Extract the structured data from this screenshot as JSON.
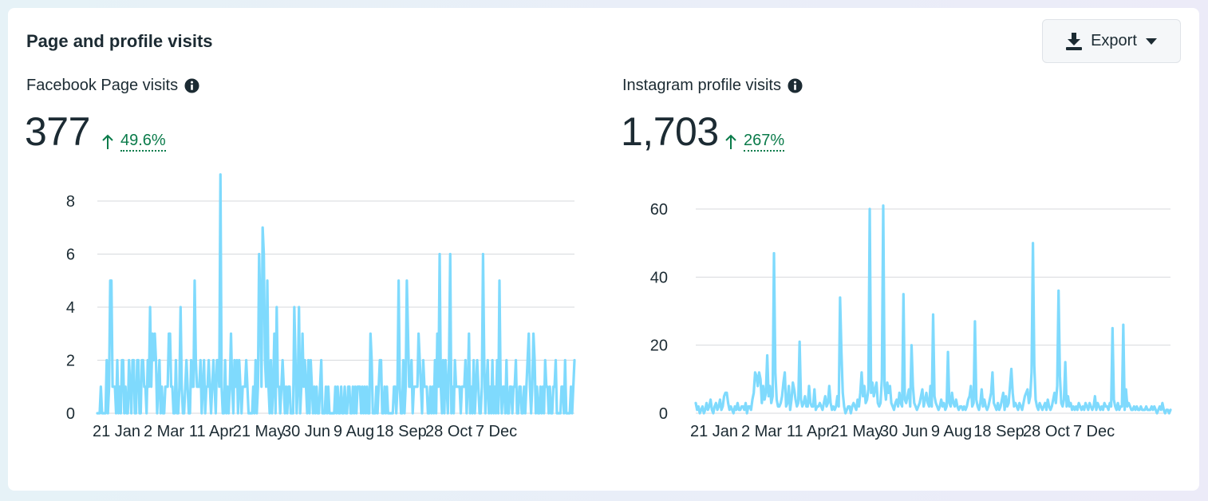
{
  "card": {
    "title": "Page and profile visits",
    "export": {
      "label": "Export",
      "icon": "download-icon",
      "caret_icon": "caret-down-icon"
    }
  },
  "colors": {
    "line": "#7fdafd",
    "positive": "#0a7b4a",
    "grid": "#d7dadd"
  },
  "metrics": [
    {
      "label": "Facebook Page visits",
      "value": "377",
      "change": "49.6%",
      "change_icon": "arrow-up-icon",
      "info_icon": "info-icon"
    },
    {
      "label": "Instagram profile visits",
      "value": "1,703",
      "change": "267%",
      "change_icon": "arrow-up-icon",
      "info_icon": "info-icon"
    }
  ],
  "chart_data": [
    {
      "type": "line",
      "series": [
        {
          "values": [
            0,
            0,
            0,
            1,
            0,
            0,
            0,
            0,
            2,
            0,
            1,
            5,
            5,
            1,
            1,
            1,
            0,
            2,
            0,
            1,
            0,
            2,
            2,
            0,
            1,
            0,
            0,
            2,
            1,
            0,
            2,
            2,
            0,
            0,
            2,
            2,
            0,
            0,
            2,
            2,
            1,
            1,
            0,
            2,
            1,
            4,
            1,
            3,
            2,
            3,
            2,
            0,
            1,
            2,
            0,
            1,
            0,
            0,
            1,
            1,
            1,
            3,
            3,
            1,
            1,
            0,
            0,
            2,
            0,
            0,
            1,
            4,
            1,
            0,
            0,
            1,
            2,
            1,
            0,
            0,
            2,
            1,
            1,
            5,
            2,
            1,
            1,
            1,
            2,
            0,
            1,
            2,
            0,
            1,
            1,
            2,
            1,
            0,
            1,
            2,
            1,
            0,
            2,
            2,
            1,
            9,
            1,
            0,
            0,
            2,
            0,
            1,
            0,
            1,
            3,
            1,
            0,
            2,
            1,
            2,
            0,
            2,
            1,
            0,
            1,
            1,
            1,
            2,
            1,
            0,
            0,
            0,
            0,
            1,
            0,
            2,
            0,
            1,
            6,
            4,
            1,
            7,
            6,
            2,
            1,
            5,
            1,
            0,
            2,
            0,
            1,
            3,
            0,
            4,
            1,
            1,
            0,
            1,
            2,
            1,
            0,
            1,
            0,
            1,
            1,
            0,
            0,
            0,
            4,
            2,
            0,
            1,
            4,
            0,
            1,
            3,
            1,
            2,
            1,
            0,
            2,
            0,
            2,
            1,
            0,
            1,
            0,
            1,
            0,
            0,
            1,
            2,
            0,
            0,
            0,
            1,
            0,
            1,
            0,
            0,
            0,
            0,
            0,
            1,
            0,
            1,
            0,
            0,
            1,
            0,
            0,
            1,
            0,
            0,
            1,
            1,
            0,
            0,
            1,
            0,
            1,
            0,
            1,
            1,
            1,
            0,
            1,
            0,
            1,
            0,
            1,
            0,
            0,
            3,
            2,
            0,
            0,
            0,
            1,
            0,
            1,
            2,
            2,
            0,
            0,
            1,
            0,
            1,
            0,
            0,
            0,
            0,
            0,
            1,
            1,
            0,
            1,
            5,
            1,
            0,
            0,
            2,
            0,
            1,
            5,
            3,
            1,
            1,
            2,
            0,
            1,
            1,
            1,
            1,
            3,
            2,
            1,
            0,
            2,
            1,
            1,
            1,
            0,
            0,
            1,
            0,
            1,
            0,
            2,
            0,
            3,
            1,
            6,
            1,
            0,
            2,
            0,
            2,
            1,
            0,
            2,
            6,
            0,
            1,
            0,
            2,
            1,
            1,
            1,
            1,
            0,
            1,
            1,
            1,
            2,
            0,
            1,
            3,
            0,
            1,
            0,
            2,
            0,
            1,
            2,
            1,
            0,
            0,
            1,
            6,
            2,
            0,
            1,
            2,
            0,
            1,
            0,
            2,
            0,
            1,
            0,
            2,
            0,
            5,
            1,
            0,
            1,
            1,
            0,
            2,
            0,
            0,
            1,
            1,
            0,
            1,
            1,
            2,
            0,
            0,
            1,
            1,
            0,
            0,
            1,
            0,
            1,
            2,
            3,
            1,
            0,
            1,
            3,
            2,
            0,
            1,
            0,
            0,
            1,
            0,
            1,
            0,
            2,
            1,
            1,
            0,
            1,
            0,
            0,
            1,
            1,
            2,
            0,
            0,
            0,
            0,
            1,
            1,
            0,
            2,
            0,
            0,
            0,
            0,
            1,
            0,
            1,
            2
          ]
        }
      ],
      "x_ticks": [
        "21 Jan",
        "2 Mar",
        "11 Apr",
        "21 May",
        "30 Jun",
        "9 Aug",
        "18 Sep",
        "28 Oct",
        "7 Dec"
      ],
      "y_ticks": [
        0,
        2,
        4,
        6,
        8
      ],
      "ylim": [
        0,
        9
      ],
      "grid": true
    },
    {
      "type": "line",
      "series": [
        {
          "values": [
            3,
            1,
            2,
            0,
            1,
            2,
            0,
            1,
            3,
            1,
            2,
            4,
            1,
            0,
            2,
            3,
            1,
            2,
            4,
            1,
            2,
            5,
            6,
            6,
            3,
            1,
            2,
            1,
            0,
            2,
            1,
            3,
            1,
            1,
            2,
            2,
            1,
            3,
            0,
            2,
            2,
            1,
            4,
            6,
            12,
            11,
            8,
            12,
            10,
            3,
            8,
            4,
            6,
            17,
            5,
            8,
            3,
            5,
            47,
            12,
            4,
            2,
            2,
            3,
            5,
            9,
            12,
            2,
            3,
            8,
            1,
            4,
            9,
            7,
            4,
            2,
            3,
            21,
            4,
            2,
            3,
            5,
            2,
            2,
            8,
            3,
            2,
            2,
            7,
            1,
            2,
            2,
            3,
            2,
            1,
            3,
            5,
            2,
            3,
            8,
            3,
            1,
            2,
            1,
            2,
            5,
            2,
            34,
            18,
            6,
            2,
            0,
            1,
            2,
            2,
            0,
            2,
            3,
            2,
            1,
            4,
            2,
            6,
            12,
            5,
            8,
            3,
            4,
            7,
            60,
            6,
            9,
            5,
            7,
            9,
            3,
            2,
            3,
            10,
            61,
            8,
            4,
            9,
            6,
            8,
            3,
            2,
            1,
            3,
            4,
            2,
            6,
            3,
            2,
            35,
            4,
            3,
            5,
            7,
            2,
            20,
            8,
            3,
            2,
            1,
            2,
            3,
            5,
            7,
            2,
            4,
            6,
            3,
            2,
            8,
            2,
            29,
            5,
            3,
            2,
            1,
            2,
            4,
            2,
            3,
            1,
            2,
            18,
            3,
            2,
            6,
            3,
            2,
            4,
            2,
            1,
            2,
            2,
            1,
            2,
            1,
            2,
            4,
            5,
            8,
            2,
            3,
            27,
            4,
            2,
            1,
            3,
            7,
            2,
            4,
            2,
            1,
            2,
            4,
            6,
            12,
            3,
            2,
            1,
            3,
            1,
            2,
            4,
            6,
            1,
            5,
            2,
            3,
            8,
            13,
            6,
            2,
            3,
            2,
            1,
            3,
            2,
            1,
            3,
            5,
            6,
            7,
            3,
            5,
            12,
            50,
            14,
            4,
            2,
            1,
            3,
            2,
            1,
            2,
            3,
            1,
            4,
            2,
            1,
            2,
            4,
            6,
            3,
            8,
            36,
            11,
            3,
            2,
            4,
            15,
            2,
            5,
            2,
            3,
            1,
            2,
            1,
            2,
            1,
            3,
            2,
            1,
            2,
            1,
            3,
            2,
            1,
            3,
            2,
            1,
            2,
            5,
            1,
            3,
            2,
            1,
            2,
            1,
            3,
            2,
            2,
            1,
            3,
            2,
            25,
            4,
            2,
            1,
            3,
            1,
            2,
            2,
            26,
            1,
            7,
            2,
            3,
            2,
            1,
            1,
            2,
            1,
            2,
            1,
            1,
            2,
            1,
            1,
            1,
            2,
            1,
            1,
            1,
            2,
            1,
            2,
            1,
            0,
            1,
            2,
            1,
            3,
            1,
            0,
            1,
            1,
            0,
            1
          ]
        }
      ],
      "x_ticks": [
        "21 Jan",
        "2 Mar",
        "11 Apr",
        "21 May",
        "30 Jun",
        "9 Aug",
        "18 Sep",
        "28 Oct",
        "7 Dec"
      ],
      "y_ticks": [
        0,
        20,
        40,
        60
      ],
      "ylim": [
        0,
        61
      ],
      "grid": true
    }
  ]
}
